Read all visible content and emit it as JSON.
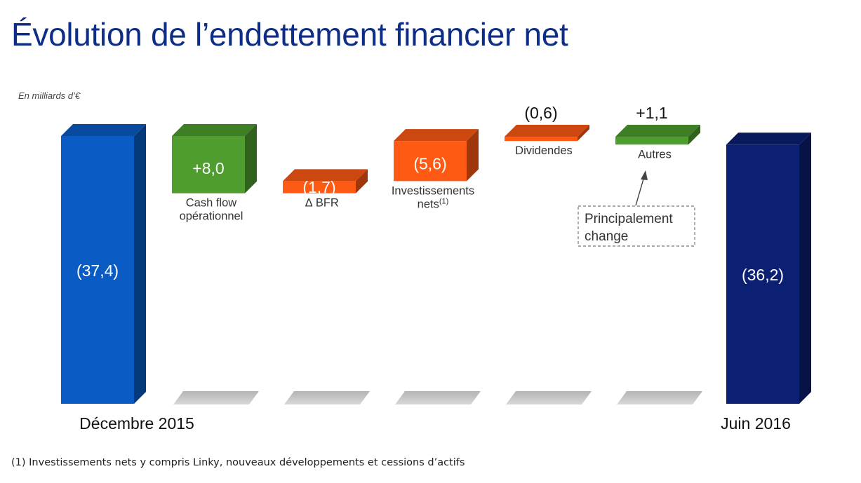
{
  "title": "Évolution de l’endettement financier net",
  "unit_label": "En milliards d’€",
  "footnote": "(1) Investissements nets y compris Linky, nouveaux développements et cessions d’actifs",
  "annotation": {
    "line1": "Principalement",
    "line2": "change",
    "target_category": "Autres"
  },
  "colors": {
    "total_start": "#0a5cc4",
    "total_end": "#0b1f73",
    "increase": "#4e9d2e",
    "decrease": "#ff5a14"
  },
  "chart_data": {
    "type": "bar",
    "subtype": "waterfall",
    "title": "Évolution de l’endettement financier net",
    "ylabel": "En milliards d’€",
    "xlabel": "",
    "grid": false,
    "legend": "none",
    "steps": [
      {
        "id": "dec2015",
        "kind": "total",
        "value": -37.4,
        "value_label": "(37,4)",
        "label_lines": [
          "Décembre 2015"
        ],
        "color": "#0a5cc4"
      },
      {
        "id": "cashflow",
        "kind": "increase",
        "value": 8.0,
        "value_label": "+8,0",
        "label_lines": [
          "Cash flow",
          "opérationnel"
        ],
        "color": "#4e9d2e"
      },
      {
        "id": "bfr",
        "kind": "decrease",
        "value": -1.7,
        "value_label": "(1,7)",
        "label_lines": [
          "∆ BFR"
        ],
        "color": "#ff5a14"
      },
      {
        "id": "invest",
        "kind": "decrease",
        "value": -5.6,
        "value_label": "(5,6)",
        "label_lines": [
          "Investissements",
          "nets"
        ],
        "label_sup": "(1)",
        "color": "#ff5a14"
      },
      {
        "id": "dividendes",
        "kind": "decrease",
        "value": -0.6,
        "value_label": "(0,6)",
        "label_lines": [
          "Dividendes"
        ],
        "color": "#ff5a14"
      },
      {
        "id": "autres",
        "kind": "increase",
        "value": 1.1,
        "value_label": "+1,1",
        "label_lines": [
          "Autres"
        ],
        "color": "#4e9d2e"
      },
      {
        "id": "juin2016",
        "kind": "total",
        "value": -36.2,
        "value_label": "(36,2)",
        "label_lines": [
          "Juin 2016"
        ],
        "color": "#0b1f73"
      }
    ]
  }
}
